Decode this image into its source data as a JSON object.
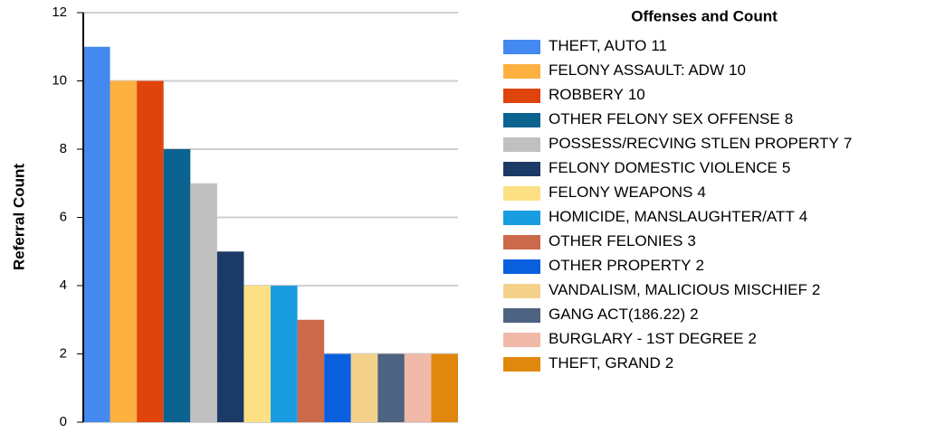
{
  "chart_data": {
    "type": "bar",
    "y_label": "Referral Count",
    "legend_title": "Offenses and Count",
    "categories": [
      "THEFT, AUTO",
      "FELONY ASSAULT: ADW",
      "ROBBERY",
      "OTHER FELONY SEX OFFENSE",
      "POSSESS/RECVING STLEN PROPERTY",
      "FELONY DOMESTIC VIOLENCE",
      "FELONY WEAPONS",
      "HOMICIDE, MANSLAUGHTER/ATT",
      "OTHER FELONIES",
      "OTHER PROPERTY",
      "VANDALISM, MALICIOUS MISCHIEF",
      "GANG ACT(186.22)",
      "BURGLARY - 1ST DEGREE",
      "THEFT, GRAND"
    ],
    "values": [
      11,
      10,
      10,
      8,
      7,
      5,
      4,
      4,
      3,
      2,
      2,
      2,
      2,
      2
    ],
    "colors": [
      "#4389f0",
      "#fbb040",
      "#df440c",
      "#0b6390",
      "#c0c0c0",
      "#1c3a66",
      "#fde084",
      "#199de0",
      "#cb6a4b",
      "#0a5fde",
      "#f4d18a",
      "#4e6381",
      "#f0b9a9",
      "#e0870d"
    ],
    "ylim": [
      0,
      12
    ],
    "yticks": [
      0,
      2,
      4,
      6,
      8,
      10,
      12
    ],
    "grid": true
  }
}
